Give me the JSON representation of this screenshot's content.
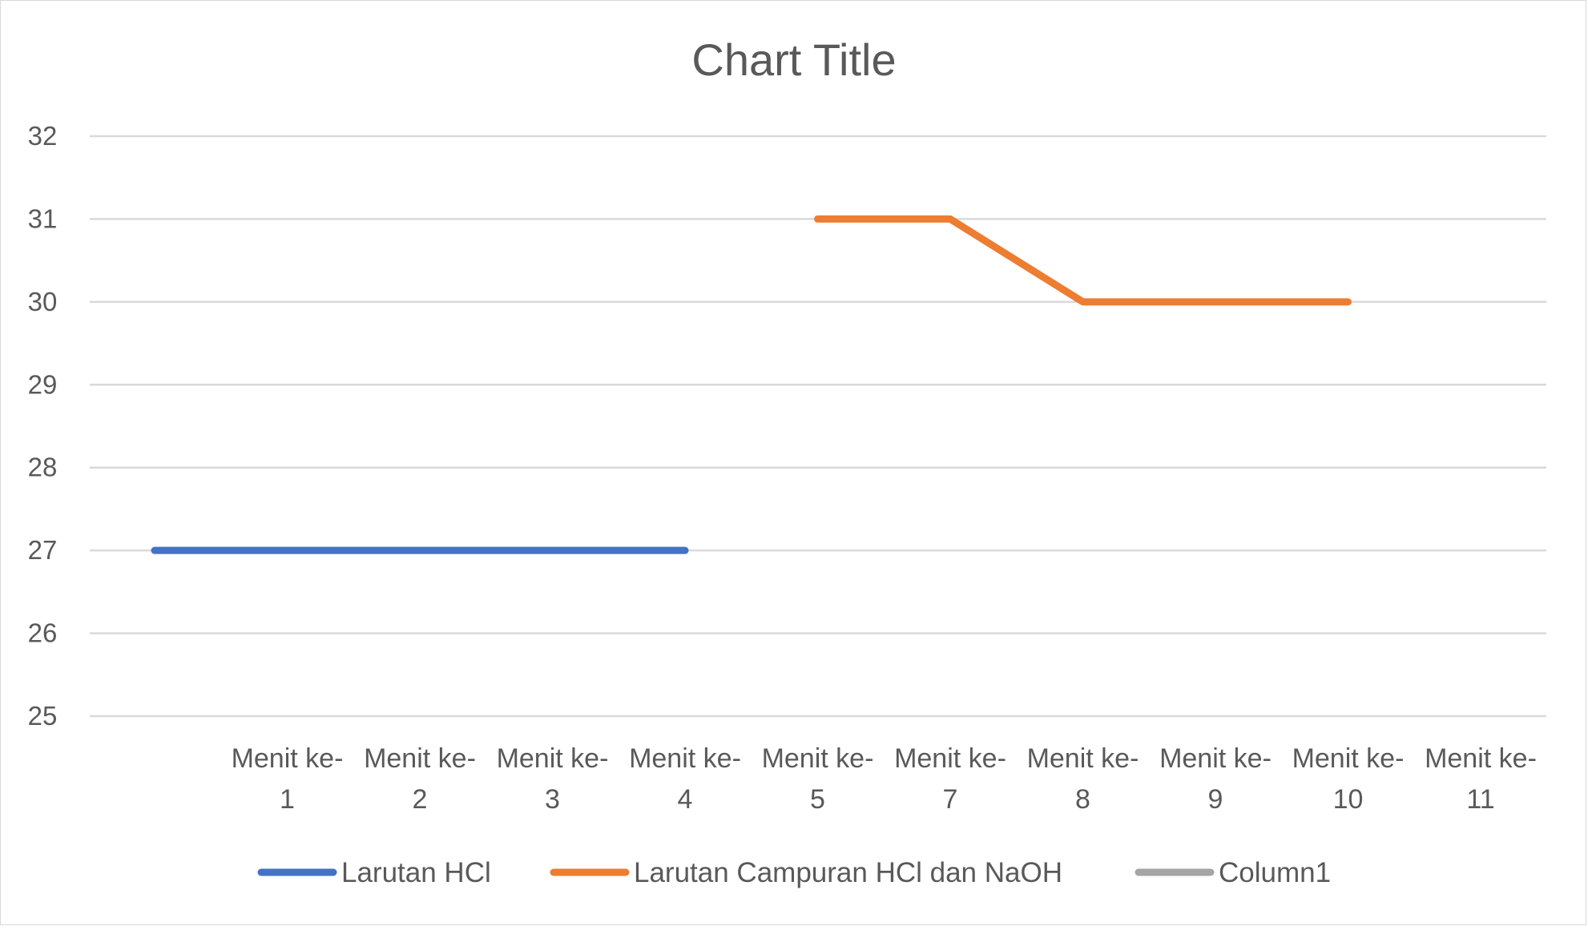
{
  "chart_data": {
    "type": "line",
    "title": "Chart Title",
    "categories": [
      [
        "Menit ke-",
        "1"
      ],
      [
        "Menit ke-",
        "2"
      ],
      [
        "Menit ke-",
        "3"
      ],
      [
        "Menit ke-",
        "4"
      ],
      [
        "Menit ke-",
        "5"
      ],
      [
        "Menit ke-",
        "7"
      ],
      [
        "Menit ke-",
        "8"
      ],
      [
        "Menit ke-",
        "9"
      ],
      [
        "Menit ke-",
        "10"
      ],
      [
        "Menit ke-",
        "11"
      ]
    ],
    "y_ticks": [
      "25",
      "26",
      "27",
      "28",
      "29",
      "30",
      "31",
      "32"
    ],
    "ylim": [
      25,
      32
    ],
    "grid": true,
    "legend_position": "bottom",
    "series": [
      {
        "name": "Larutan HCl",
        "color": "#4472C4",
        "values": [
          27,
          27,
          27,
          27,
          27,
          null,
          null,
          null,
          null,
          null
        ]
      },
      {
        "name": "Larutan Campuran HCl dan NaOH",
        "color": "#ED7D31",
        "values": [
          null,
          null,
          null,
          null,
          null,
          31,
          31,
          30,
          30,
          30
        ]
      },
      {
        "name": "Column1",
        "color": "#A5A5A5",
        "values": [
          null,
          null,
          null,
          null,
          null,
          null,
          null,
          null,
          null,
          null
        ]
      }
    ]
  }
}
